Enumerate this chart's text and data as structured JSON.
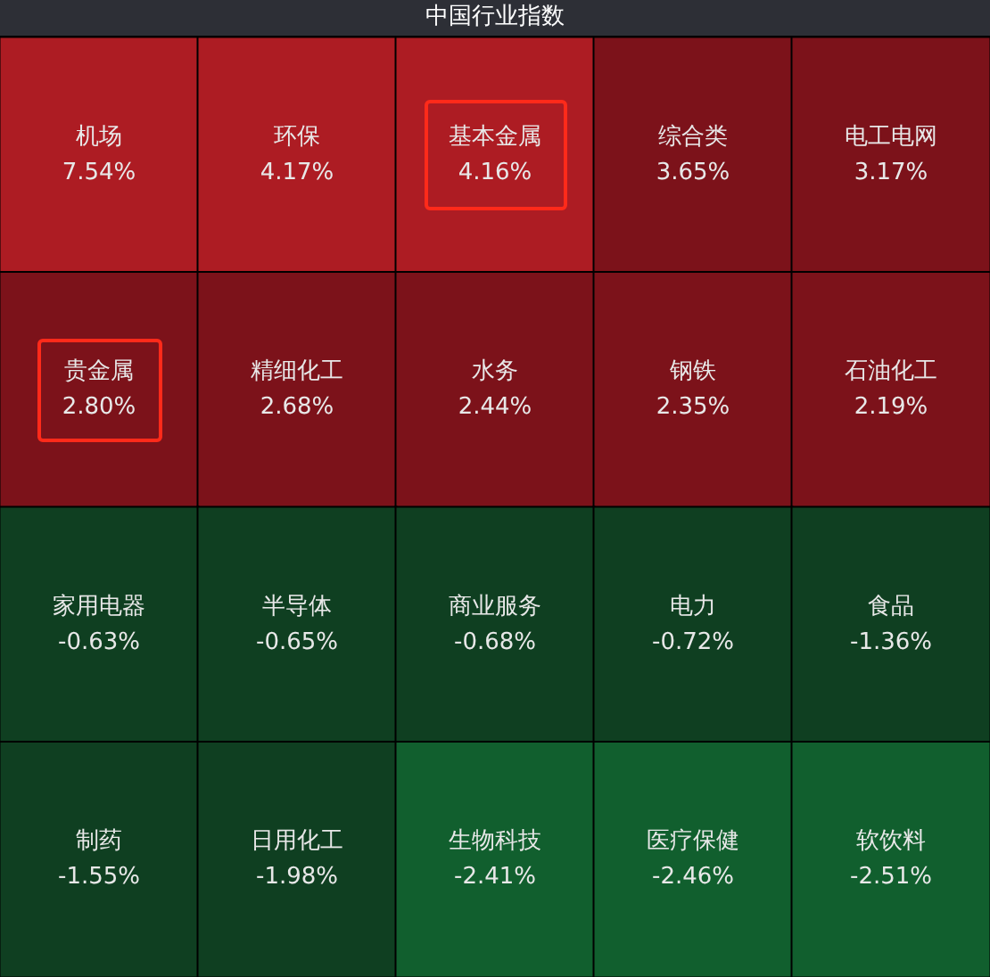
{
  "chart_data": {
    "type": "other",
    "title": "中国行业指数",
    "categories": [
      "机场",
      "环保",
      "基本金属",
      "综合类",
      "电工电网",
      "贵金属",
      "精细化工",
      "水务",
      "钢铁",
      "石油化工",
      "家用电器",
      "半导体",
      "商业服务",
      "电力",
      "食品",
      "制药",
      "日用化工",
      "生物科技",
      "医疗保健",
      "软饮料"
    ],
    "values": [
      7.54,
      4.17,
      4.16,
      3.65,
      3.17,
      2.8,
      2.68,
      2.44,
      2.35,
      2.19,
      -0.63,
      -0.65,
      -0.68,
      -0.72,
      -1.36,
      -1.55,
      -1.98,
      -2.41,
      -2.46,
      -2.51
    ],
    "value_labels": [
      "7.54%",
      "4.17%",
      "4.16%",
      "3.65%",
      "3.17%",
      "2.80%",
      "2.68%",
      "2.44%",
      "2.35%",
      "2.19%",
      "-0.63%",
      "-0.65%",
      "-0.68%",
      "-0.72%",
      "-1.36%",
      "-1.55%",
      "-1.98%",
      "-2.41%",
      "-2.46%",
      "-2.51%"
    ]
  }
}
